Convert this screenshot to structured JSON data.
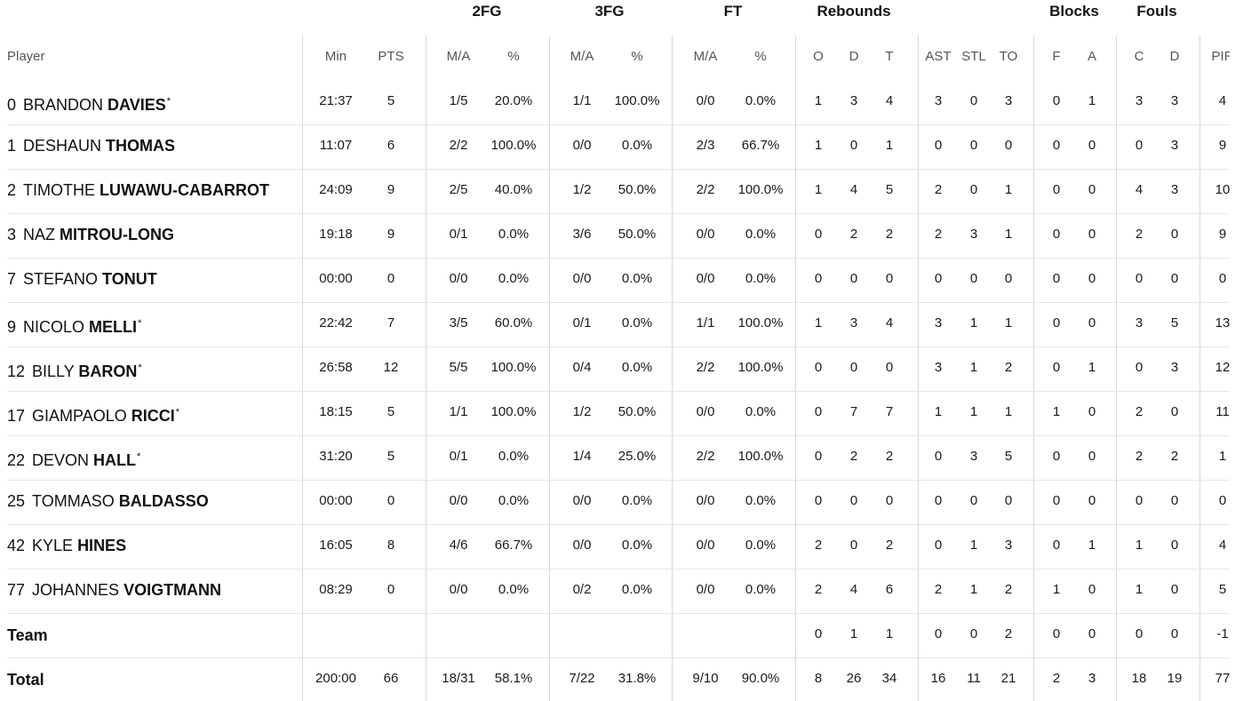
{
  "table": {
    "groups": [
      {
        "key": "2fg",
        "label": "2FG"
      },
      {
        "key": "3fg",
        "label": "3FG"
      },
      {
        "key": "ft",
        "label": "FT"
      },
      {
        "key": "reb",
        "label": "Rebounds"
      },
      {
        "key": "blk",
        "label": "Blocks"
      },
      {
        "key": "fouls",
        "label": "Fouls"
      }
    ],
    "player_header": "Player",
    "columns": [
      "Min",
      "PTS",
      "M/A",
      "%",
      "M/A",
      "%",
      "M/A",
      "%",
      "O",
      "D",
      "T",
      "AST",
      "STL",
      "TO",
      "F",
      "A",
      "C",
      "D",
      "PIR"
    ],
    "rows": [
      {
        "num": "0",
        "first": "BRANDON",
        "last": "DAVIES",
        "starter": true,
        "stats": [
          "21:37",
          "5",
          "1/5",
          "20.0%",
          "1/1",
          "100.0%",
          "0/0",
          "0.0%",
          "1",
          "3",
          "4",
          "3",
          "0",
          "3",
          "0",
          "1",
          "3",
          "3",
          "4"
        ]
      },
      {
        "num": "1",
        "first": "DESHAUN",
        "last": "THOMAS",
        "starter": false,
        "stats": [
          "11:07",
          "6",
          "2/2",
          "100.0%",
          "0/0",
          "0.0%",
          "2/3",
          "66.7%",
          "1",
          "0",
          "1",
          "0",
          "0",
          "0",
          "0",
          "0",
          "0",
          "3",
          "9"
        ]
      },
      {
        "num": "2",
        "first": "TIMOTHE",
        "last": "LUWAWU-CABARROT",
        "starter": false,
        "stats": [
          "24:09",
          "9",
          "2/5",
          "40.0%",
          "1/2",
          "50.0%",
          "2/2",
          "100.0%",
          "1",
          "4",
          "5",
          "2",
          "0",
          "1",
          "0",
          "0",
          "4",
          "3",
          "10"
        ]
      },
      {
        "num": "3",
        "first": "NAZ",
        "last": "MITROU-LONG",
        "starter": false,
        "stats": [
          "19:18",
          "9",
          "0/1",
          "0.0%",
          "3/6",
          "50.0%",
          "0/0",
          "0.0%",
          "0",
          "2",
          "2",
          "2",
          "3",
          "1",
          "0",
          "0",
          "2",
          "0",
          "9"
        ]
      },
      {
        "num": "7",
        "first": "STEFANO",
        "last": "TONUT",
        "starter": false,
        "stats": [
          "00:00",
          "0",
          "0/0",
          "0.0%",
          "0/0",
          "0.0%",
          "0/0",
          "0.0%",
          "0",
          "0",
          "0",
          "0",
          "0",
          "0",
          "0",
          "0",
          "0",
          "0",
          "0"
        ]
      },
      {
        "num": "9",
        "first": "NICOLO",
        "last": "MELLI",
        "starter": true,
        "stats": [
          "22:42",
          "7",
          "3/5",
          "60.0%",
          "0/1",
          "0.0%",
          "1/1",
          "100.0%",
          "1",
          "3",
          "4",
          "3",
          "1",
          "1",
          "0",
          "0",
          "3",
          "5",
          "13"
        ]
      },
      {
        "num": "12",
        "first": "BILLY",
        "last": "BARON",
        "starter": true,
        "stats": [
          "26:58",
          "12",
          "5/5",
          "100.0%",
          "0/4",
          "0.0%",
          "2/2",
          "100.0%",
          "0",
          "0",
          "0",
          "3",
          "1",
          "2",
          "0",
          "1",
          "0",
          "3",
          "12"
        ]
      },
      {
        "num": "17",
        "first": "GIAMPAOLO",
        "last": "RICCI",
        "starter": true,
        "stats": [
          "18:15",
          "5",
          "1/1",
          "100.0%",
          "1/2",
          "50.0%",
          "0/0",
          "0.0%",
          "0",
          "7",
          "7",
          "1",
          "1",
          "1",
          "1",
          "0",
          "2",
          "0",
          "11"
        ]
      },
      {
        "num": "22",
        "first": "DEVON",
        "last": "HALL",
        "starter": true,
        "stats": [
          "31:20",
          "5",
          "0/1",
          "0.0%",
          "1/4",
          "25.0%",
          "2/2",
          "100.0%",
          "0",
          "2",
          "2",
          "0",
          "3",
          "5",
          "0",
          "0",
          "2",
          "2",
          "1"
        ]
      },
      {
        "num": "25",
        "first": "TOMMASO",
        "last": "BALDASSO",
        "starter": false,
        "stats": [
          "00:00",
          "0",
          "0/0",
          "0.0%",
          "0/0",
          "0.0%",
          "0/0",
          "0.0%",
          "0",
          "0",
          "0",
          "0",
          "0",
          "0",
          "0",
          "0",
          "0",
          "0",
          "0"
        ]
      },
      {
        "num": "42",
        "first": "KYLE",
        "last": "HINES",
        "starter": false,
        "stats": [
          "16:05",
          "8",
          "4/6",
          "66.7%",
          "0/0",
          "0.0%",
          "0/0",
          "0.0%",
          "2",
          "0",
          "2",
          "0",
          "1",
          "3",
          "0",
          "1",
          "1",
          "0",
          "4"
        ]
      },
      {
        "num": "77",
        "first": "JOHANNES",
        "last": "VOIGTMANN",
        "starter": false,
        "stats": [
          "08:29",
          "0",
          "0/0",
          "0.0%",
          "0/2",
          "0.0%",
          "0/0",
          "0.0%",
          "2",
          "4",
          "6",
          "2",
          "1",
          "2",
          "1",
          "0",
          "1",
          "0",
          "5"
        ]
      }
    ],
    "team_row": {
      "label": "Team",
      "stats": [
        "",
        "",
        "",
        "",
        "",
        "",
        "",
        "",
        "0",
        "1",
        "1",
        "0",
        "0",
        "2",
        "0",
        "0",
        "0",
        "0",
        "-1"
      ]
    },
    "total_row": {
      "label": "Total",
      "stats": [
        "200:00",
        "66",
        "18/31",
        "58.1%",
        "7/22",
        "31.8%",
        "9/10",
        "90.0%",
        "8",
        "26",
        "34",
        "16",
        "11",
        "21",
        "2",
        "3",
        "18",
        "19",
        "77"
      ]
    },
    "star_glyph": "*"
  }
}
